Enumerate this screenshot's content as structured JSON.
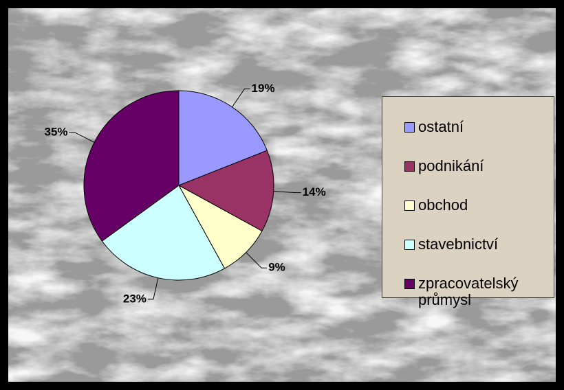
{
  "chart_data": {
    "type": "pie",
    "categories": [
      "ostatní",
      "podnikání",
      "obchod",
      "stavebnictví",
      "zpracovatelský průmysl"
    ],
    "values": [
      19,
      14,
      9,
      23,
      35
    ],
    "value_labels": [
      "19%",
      "14%",
      "9%",
      "23%",
      "35%"
    ],
    "colors": [
      "#9999ff",
      "#993366",
      "#ffffcc",
      "#ccffff",
      "#660066"
    ],
    "legend": "right"
  }
}
